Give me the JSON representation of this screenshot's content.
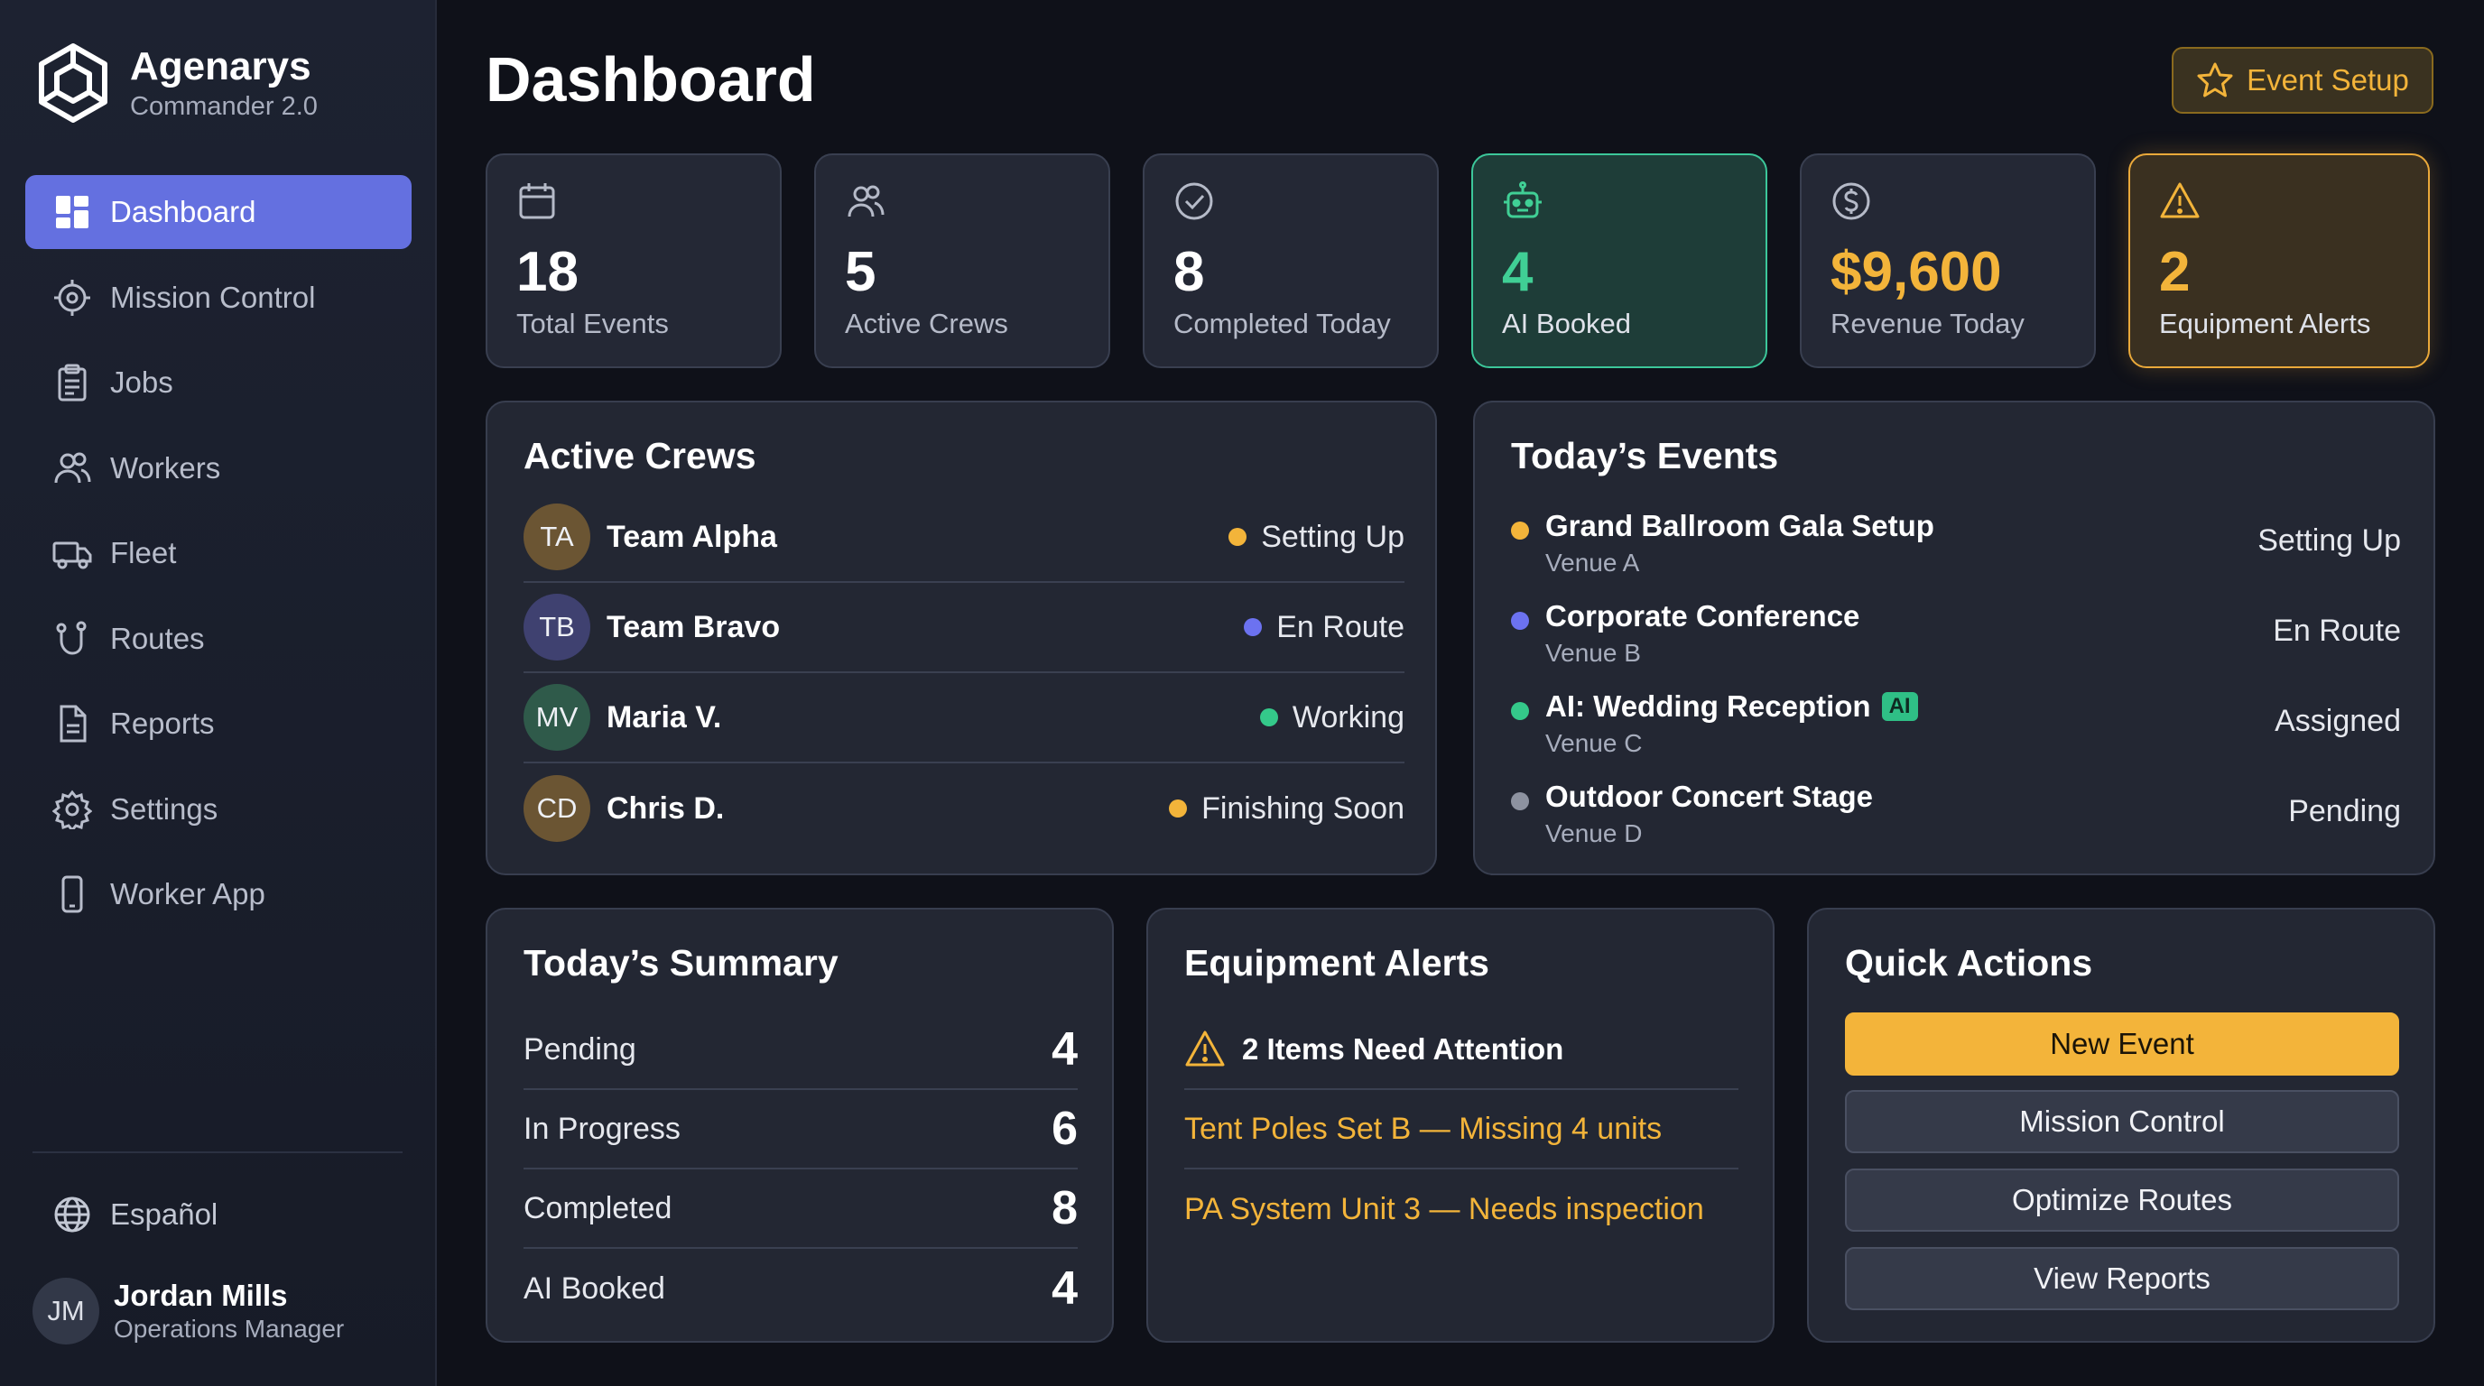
{
  "brand": {
    "name": "Agenarys",
    "version": "Commander 2.0"
  },
  "sidebar": {
    "items": [
      {
        "label": "Dashboard",
        "icon": "dashboard-icon",
        "active": true
      },
      {
        "label": "Mission Control",
        "icon": "crosshair-icon"
      },
      {
        "label": "Jobs",
        "icon": "clipboard-icon"
      },
      {
        "label": "Workers",
        "icon": "users-icon"
      },
      {
        "label": "Fleet",
        "icon": "truck-icon"
      },
      {
        "label": "Routes",
        "icon": "route-icon"
      },
      {
        "label": "Reports",
        "icon": "document-icon"
      },
      {
        "label": "Settings",
        "icon": "gear-icon"
      },
      {
        "label": "Worker App",
        "icon": "phone-icon"
      }
    ],
    "language": "Español",
    "user": {
      "initials": "JM",
      "name": "Jordan Mills",
      "role": "Operations Manager"
    }
  },
  "header": {
    "title": "Dashboard",
    "event_setup_label": "Event Setup"
  },
  "stats": [
    {
      "value": "18",
      "label": "Total Events",
      "icon": "calendar-icon"
    },
    {
      "value": "5",
      "label": "Active Crews",
      "icon": "users-icon"
    },
    {
      "value": "8",
      "label": "Completed Today",
      "icon": "check-circle-icon"
    },
    {
      "value": "4",
      "label": "AI Booked",
      "icon": "robot-icon"
    },
    {
      "value": "$9,600",
      "label": "Revenue Today",
      "icon": "dollar-icon"
    },
    {
      "value": "2",
      "label": "Equipment Alerts",
      "icon": "warning-icon"
    }
  ],
  "active_crews": {
    "title": "Active Crews",
    "rows": [
      {
        "initials": "TA",
        "name": "Team Alpha",
        "status": "Setting Up",
        "status_color": "#f3b43a",
        "avatar_color": "#6b5533"
      },
      {
        "initials": "TB",
        "name": "Team Bravo",
        "status": "En Route",
        "status_color": "#6c72f0",
        "avatar_color": "#3f4170"
      },
      {
        "initials": "MV",
        "name": "Maria V.",
        "status": "Working",
        "status_color": "#34c98a",
        "avatar_color": "#2f5a4a"
      },
      {
        "initials": "CD",
        "name": "Chris D.",
        "status": "Finishing Soon",
        "status_color": "#f3b43a",
        "avatar_color": "#6b5533"
      }
    ]
  },
  "todays_events": {
    "title": "Today’s Events",
    "rows": [
      {
        "name": "Grand Ballroom Gala Setup",
        "venue": "Venue A",
        "status": "Setting Up",
        "dot_color": "#f3b43a",
        "badge": ""
      },
      {
        "name": "Corporate Conference",
        "venue": "Venue B",
        "status": "En Route",
        "dot_color": "#6c72f0",
        "badge": ""
      },
      {
        "name": "AI: Wedding Reception",
        "venue": "Venue C",
        "status": "Assigned",
        "dot_color": "#34c98a",
        "badge": "AI"
      },
      {
        "name": "Outdoor Concert Stage",
        "venue": "Venue D",
        "status": "Pending",
        "dot_color": "#8d92a0",
        "badge": ""
      }
    ]
  },
  "summary": {
    "title": "Today’s Summary",
    "rows": [
      {
        "label": "Pending",
        "value": "4"
      },
      {
        "label": "In Progress",
        "value": "6"
      },
      {
        "label": "Completed",
        "value": "8"
      },
      {
        "label": "AI Booked",
        "value": "4"
      }
    ]
  },
  "equipment_alerts": {
    "title": "Equipment Alerts",
    "heading": "2 Items Need Attention",
    "items": [
      "Tent Poles Set B — Missing 4 units",
      "PA System Unit 3 — Needs inspection"
    ]
  },
  "quick_actions": {
    "title": "Quick Actions",
    "buttons": [
      "New Event",
      "Mission Control",
      "Optimize Routes",
      "View Reports"
    ]
  },
  "colors": {
    "accent": "#6470e0",
    "amber": "#f3b43a",
    "green": "#34c98a",
    "background": "#0f1119",
    "panel": "#232733"
  }
}
